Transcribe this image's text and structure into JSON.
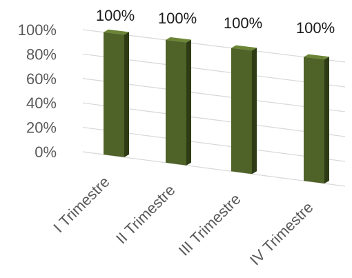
{
  "chart_data": {
    "type": "bar",
    "title": "",
    "xlabel": "",
    "ylabel": "",
    "categories": [
      "I Trimestre",
      "II Trimestre",
      "III Trimestre",
      "IV Trimestre"
    ],
    "values": [
      100,
      100,
      100,
      100
    ],
    "data_labels": [
      "100%",
      "100%",
      "100%",
      "100%"
    ],
    "y_ticks": [
      "0%",
      "20%",
      "40%",
      "60%",
      "80%",
      "100%"
    ],
    "ylim": [
      0,
      100
    ],
    "grid": true,
    "legend": "none",
    "style": "3d-perspective-column",
    "colors": {
      "bar_front": "#4f6228",
      "bar_side": "#2e3b14",
      "bar_top": "#6b8536",
      "gridline": "#d9d9d9",
      "text": "#595959"
    }
  }
}
